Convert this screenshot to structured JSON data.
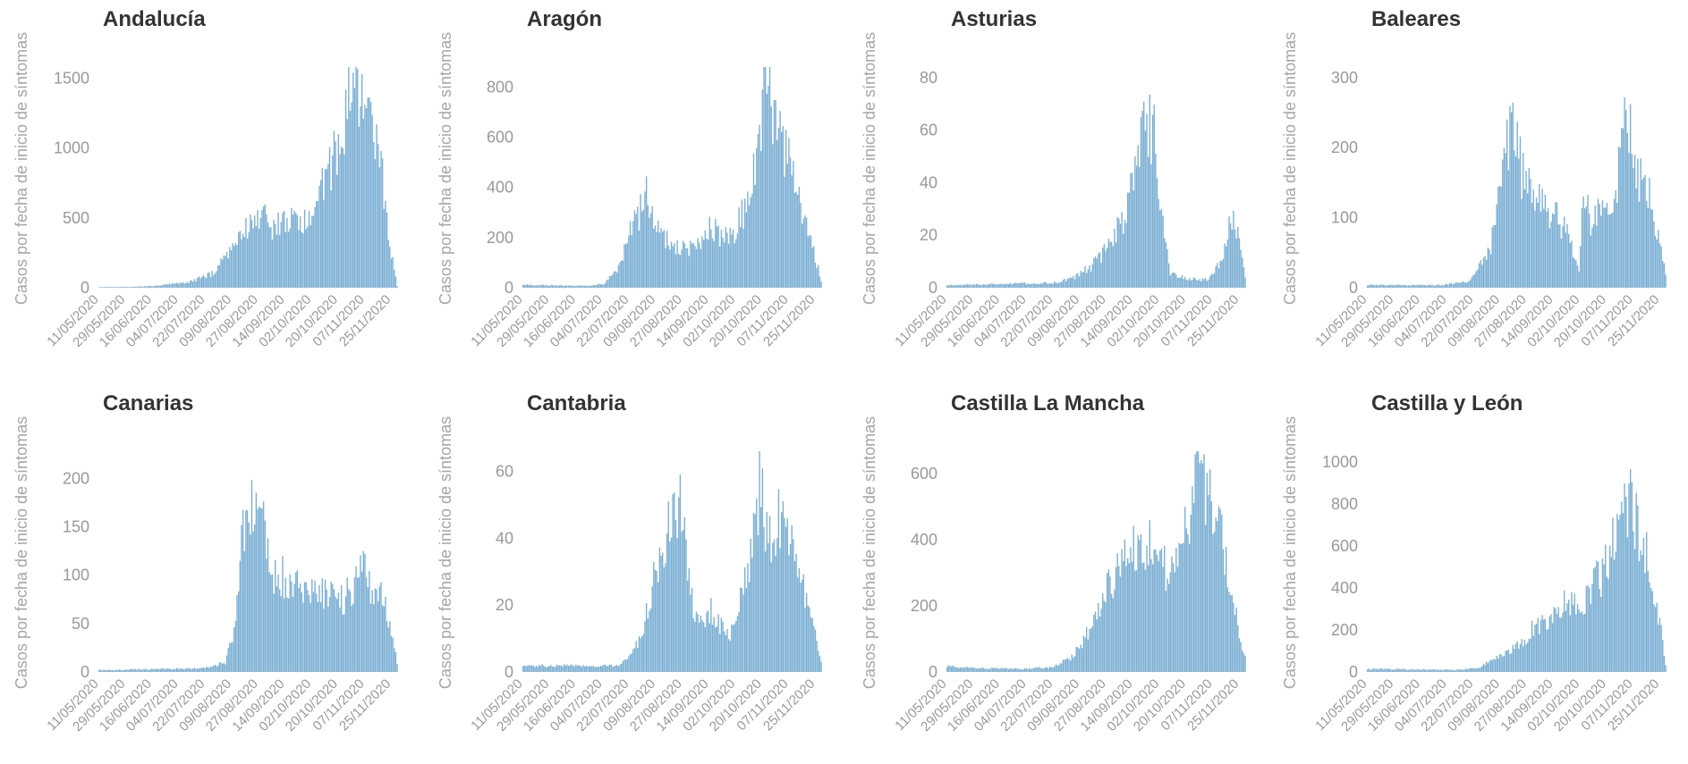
{
  "chart_data": {
    "type": "bar",
    "bar_color": "#7bafd4",
    "text_color": "#999999",
    "title_color": "#333333",
    "ylabel": "Casos por fecha de inicio de síntomas",
    "x_tick_labels": [
      "11/05/2020",
      "29/05/2020",
      "16/06/2020",
      "04/07/2020",
      "22/07/2020",
      "09/08/2020",
      "27/08/2020",
      "14/09/2020",
      "02/10/2020",
      "20/10/2020",
      "07/11/2020",
      "25/11/2020"
    ],
    "x_range": [
      "11/05/2020",
      "30/11/2020"
    ],
    "grid": false,
    "legend": "none",
    "panels": [
      {
        "title": "Andalucía",
        "yticks": [
          0,
          500,
          1000,
          1500
        ],
        "ylim": [
          0,
          1580
        ],
        "series_profile": [
          [
            "11/05/2020",
            5
          ],
          [
            "01/06/2020",
            6
          ],
          [
            "20/06/2020",
            15
          ],
          [
            "10/07/2020",
            40
          ],
          [
            "28/07/2020",
            110
          ],
          [
            "10/08/2020",
            320
          ],
          [
            "22/08/2020",
            480
          ],
          [
            "30/08/2020",
            560
          ],
          [
            "05/09/2020",
            430
          ],
          [
            "14/09/2020",
            500
          ],
          [
            "24/09/2020",
            480
          ],
          [
            "02/10/2020",
            580
          ],
          [
            "12/10/2020",
            800
          ],
          [
            "20/10/2020",
            1050
          ],
          [
            "27/10/2020",
            1380
          ],
          [
            "02/11/2020",
            1440
          ],
          [
            "08/11/2020",
            1350
          ],
          [
            "14/11/2020",
            1100
          ],
          [
            "20/11/2020",
            800
          ],
          [
            "25/11/2020",
            350
          ],
          [
            "30/11/2020",
            10
          ]
        ]
      },
      {
        "title": "Aragón",
        "yticks": [
          0,
          200,
          400,
          600,
          800
        ],
        "ylim": [
          0,
          880
        ],
        "series_profile": [
          [
            "11/05/2020",
            12
          ],
          [
            "20/06/2020",
            8
          ],
          [
            "05/07/2020",
            15
          ],
          [
            "15/07/2020",
            80
          ],
          [
            "22/07/2020",
            220
          ],
          [
            "28/07/2020",
            300
          ],
          [
            "03/08/2020",
            380
          ],
          [
            "09/08/2020",
            250
          ],
          [
            "20/08/2020",
            200
          ],
          [
            "30/08/2020",
            150
          ],
          [
            "09/09/2020",
            200
          ],
          [
            "16/09/2020",
            250
          ],
          [
            "24/09/2020",
            220
          ],
          [
            "02/10/2020",
            230
          ],
          [
            "08/10/2020",
            320
          ],
          [
            "16/10/2020",
            500
          ],
          [
            "22/10/2020",
            800
          ],
          [
            "29/10/2020",
            780
          ],
          [
            "05/11/2020",
            600
          ],
          [
            "12/11/2020",
            420
          ],
          [
            "18/11/2020",
            300
          ],
          [
            "25/11/2020",
            150
          ],
          [
            "30/11/2020",
            30
          ]
        ]
      },
      {
        "title": "Asturias",
        "yticks": [
          0,
          20,
          40,
          60,
          80
        ],
        "ylim": [
          0,
          84
        ],
        "series_profile": [
          [
            "11/05/2020",
            1
          ],
          [
            "22/07/2020",
            2
          ],
          [
            "05/08/2020",
            4
          ],
          [
            "18/08/2020",
            9
          ],
          [
            "30/08/2020",
            17
          ],
          [
            "08/09/2020",
            28
          ],
          [
            "16/09/2020",
            45
          ],
          [
            "22/09/2020",
            70
          ],
          [
            "29/09/2020",
            60
          ],
          [
            "05/10/2020",
            25
          ],
          [
            "10/10/2020",
            6
          ],
          [
            "20/10/2020",
            4
          ],
          [
            "05/11/2020",
            3
          ],
          [
            "14/11/2020",
            12
          ],
          [
            "20/11/2020",
            30
          ],
          [
            "25/11/2020",
            22
          ],
          [
            "30/11/2020",
            4
          ]
        ]
      },
      {
        "title": "Baleares",
        "yticks": [
          0,
          100,
          200,
          300
        ],
        "ylim": [
          0,
          315
        ],
        "series_profile": [
          [
            "11/05/2020",
            4
          ],
          [
            "01/07/2020",
            4
          ],
          [
            "20/07/2020",
            10
          ],
          [
            "03/08/2020",
            60
          ],
          [
            "13/08/2020",
            200
          ],
          [
            "19/08/2020",
            255
          ],
          [
            "24/08/2020",
            170
          ],
          [
            "05/09/2020",
            130
          ],
          [
            "15/09/2020",
            110
          ],
          [
            "25/09/2020",
            80
          ],
          [
            "02/10/2020",
            30
          ],
          [
            "05/10/2020",
            150
          ],
          [
            "10/10/2020",
            100
          ],
          [
            "20/10/2020",
            130
          ],
          [
            "27/10/2020",
            150
          ],
          [
            "04/11/2020",
            280
          ],
          [
            "10/11/2020",
            175
          ],
          [
            "18/11/2020",
            150
          ],
          [
            "25/11/2020",
            80
          ],
          [
            "30/11/2020",
            20
          ]
        ]
      },
      {
        "title": "Canarias",
        "yticks": [
          0,
          50,
          100,
          150,
          200
        ],
        "ylim": [
          0,
          228
        ],
        "series_profile": [
          [
            "11/05/2020",
            2
          ],
          [
            "20/07/2020",
            4
          ],
          [
            "05/08/2020",
            10
          ],
          [
            "12/08/2020",
            50
          ],
          [
            "17/08/2020",
            160
          ],
          [
            "24/08/2020",
            200
          ],
          [
            "31/08/2020",
            180
          ],
          [
            "07/09/2020",
            110
          ],
          [
            "22/09/2020",
            95
          ],
          [
            "07/10/2020",
            95
          ],
          [
            "20/10/2020",
            75
          ],
          [
            "30/10/2020",
            90
          ],
          [
            "07/11/2020",
            110
          ],
          [
            "14/11/2020",
            90
          ],
          [
            "22/11/2020",
            75
          ],
          [
            "30/11/2020",
            10
          ]
        ]
      },
      {
        "title": "Cantabria",
        "yticks": [
          0,
          20,
          40,
          60
        ],
        "ylim": [
          0,
          66
        ],
        "series_profile": [
          [
            "11/05/2020",
            2
          ],
          [
            "15/07/2020",
            2
          ],
          [
            "22/07/2020",
            5
          ],
          [
            "30/07/2020",
            10
          ],
          [
            "06/08/2020",
            25
          ],
          [
            "15/08/2020",
            40
          ],
          [
            "22/08/2020",
            50
          ],
          [
            "28/08/2020",
            55
          ],
          [
            "02/09/2020",
            25
          ],
          [
            "09/09/2020",
            15
          ],
          [
            "16/09/2020",
            20
          ],
          [
            "23/09/2020",
            15
          ],
          [
            "01/10/2020",
            12
          ],
          [
            "08/10/2020",
            30
          ],
          [
            "14/10/2020",
            40
          ],
          [
            "19/10/2020",
            60
          ],
          [
            "26/10/2020",
            40
          ],
          [
            "02/11/2020",
            50
          ],
          [
            "10/11/2020",
            40
          ],
          [
            "18/11/2020",
            25
          ],
          [
            "25/11/2020",
            15
          ],
          [
            "30/11/2020",
            3
          ]
        ]
      },
      {
        "title": "Castilla La Mancha",
        "yticks": [
          0,
          200,
          400,
          600
        ],
        "ylim": [
          0,
          668
        ],
        "series_profile": [
          [
            "11/05/2020",
            18
          ],
          [
            "01/06/2020",
            12
          ],
          [
            "01/07/2020",
            10
          ],
          [
            "22/07/2020",
            15
          ],
          [
            "05/08/2020",
            50
          ],
          [
            "18/08/2020",
            150
          ],
          [
            "01/09/2020",
            300
          ],
          [
            "12/09/2020",
            380
          ],
          [
            "20/09/2020",
            450
          ],
          [
            "28/09/2020",
            380
          ],
          [
            "06/10/2020",
            330
          ],
          [
            "16/10/2020",
            430
          ],
          [
            "27/10/2020",
            600
          ],
          [
            "02/11/2020",
            620
          ],
          [
            "08/11/2020",
            550
          ],
          [
            "14/11/2020",
            450
          ],
          [
            "20/11/2020",
            300
          ],
          [
            "25/11/2020",
            150
          ],
          [
            "30/11/2020",
            50
          ]
        ]
      },
      {
        "title": "Castilla y León",
        "yticks": [
          0,
          200,
          400,
          600,
          800,
          1000
        ],
        "ylim": [
          0,
          1050
        ],
        "series_profile": [
          [
            "11/05/2020",
            15
          ],
          [
            "10/07/2020",
            10
          ],
          [
            "25/07/2020",
            20
          ],
          [
            "10/08/2020",
            80
          ],
          [
            "24/08/2020",
            150
          ],
          [
            "05/09/2020",
            250
          ],
          [
            "18/09/2020",
            300
          ],
          [
            "28/09/2020",
            380
          ],
          [
            "06/10/2020",
            350
          ],
          [
            "16/10/2020",
            480
          ],
          [
            "24/10/2020",
            600
          ],
          [
            "01/11/2020",
            850
          ],
          [
            "06/11/2020",
            900
          ],
          [
            "12/11/2020",
            700
          ],
          [
            "18/11/2020",
            550
          ],
          [
            "23/11/2020",
            400
          ],
          [
            "27/11/2020",
            200
          ],
          [
            "30/11/2020",
            40
          ]
        ]
      }
    ]
  }
}
